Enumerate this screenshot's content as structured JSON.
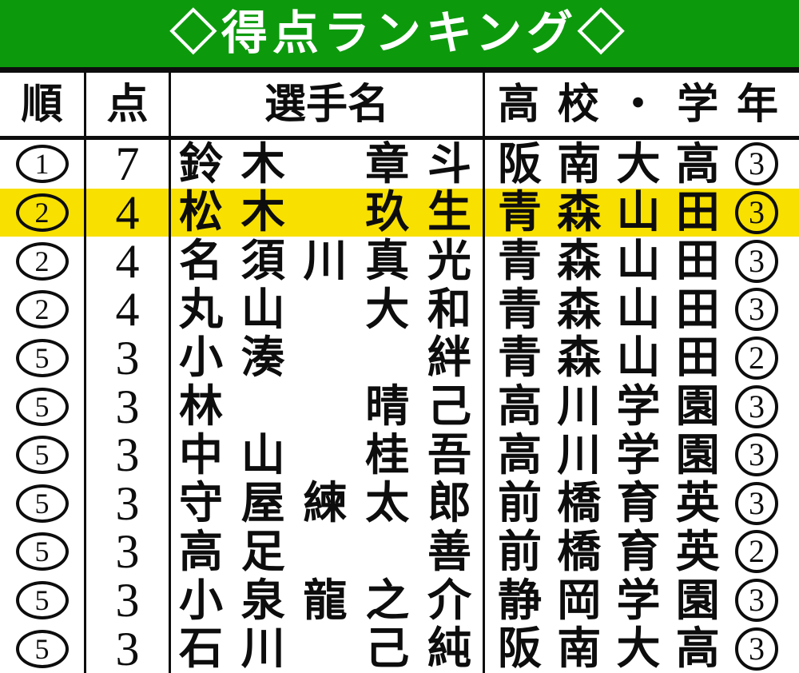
{
  "title": "◇得点ランキング◇",
  "colors": {
    "header_green": "#0c9a0c",
    "highlight_yellow": "#f8e000",
    "line_black": "#0d0d0d"
  },
  "chart_data": {
    "type": "table",
    "title": "◇得点ランキング◇",
    "columns": [
      "順",
      "点",
      "選手名",
      "高校・学年"
    ],
    "rows": [
      {
        "rank": "1",
        "points": "7",
        "name": "鈴木　章斗",
        "school": "阪南大高",
        "grade": "3",
        "highlighted": false
      },
      {
        "rank": "2",
        "points": "4",
        "name": "松木　玖生",
        "school": "青森山田",
        "grade": "3",
        "highlighted": true
      },
      {
        "rank": "2",
        "points": "4",
        "name": "名須川真光",
        "school": "青森山田",
        "grade": "3",
        "highlighted": false
      },
      {
        "rank": "2",
        "points": "4",
        "name": "丸山　大和",
        "school": "青森山田",
        "grade": "3",
        "highlighted": false
      },
      {
        "rank": "5",
        "points": "3",
        "name": "小湊　　絆",
        "school": "青森山田",
        "grade": "2",
        "highlighted": false
      },
      {
        "rank": "5",
        "points": "3",
        "name": "林　　晴己",
        "school": "高川学園",
        "grade": "3",
        "highlighted": false
      },
      {
        "rank": "5",
        "points": "3",
        "name": "中山　桂吾",
        "school": "高川学園",
        "grade": "3",
        "highlighted": false
      },
      {
        "rank": "5",
        "points": "3",
        "name": "守屋練太郎",
        "school": "前橋育英",
        "grade": "3",
        "highlighted": false
      },
      {
        "rank": "5",
        "points": "3",
        "name": "高足　　善",
        "school": "前橋育英",
        "grade": "2",
        "highlighted": false
      },
      {
        "rank": "5",
        "points": "3",
        "name": "小泉龍之介",
        "school": "静岡学園",
        "grade": "3",
        "highlighted": false
      },
      {
        "rank": "5",
        "points": "3",
        "name": "石川　己純",
        "school": "阪南大高",
        "grade": "3",
        "highlighted": false
      }
    ],
    "legend_position": "none",
    "grid": "vertical-lines-only",
    "highlighted_row_player": "松木　玖生"
  }
}
